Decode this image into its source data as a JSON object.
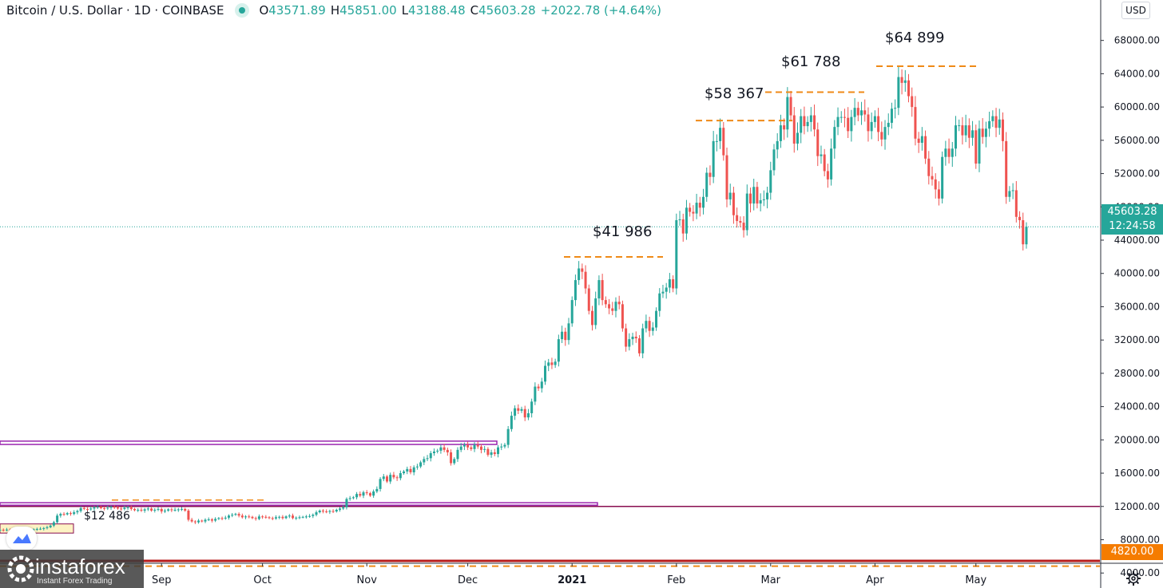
{
  "header": {
    "symbol": "Bitcoin / U.S. Dollar · 1D · COINBASE",
    "o_label": "O",
    "o": "43571.89",
    "h_label": "H",
    "h": "45851.00",
    "l_label": "L",
    "l": "43188.48",
    "c_label": "C",
    "c": "45603.28",
    "change": "+2022.78 (+4.64%)"
  },
  "currency_button": "USD",
  "last_price_label": "45603.28",
  "countdown": "12:24:58",
  "level_label": "4820.00",
  "watermark": {
    "brand": "instaforex",
    "tagline": "Instant Forex Trading"
  },
  "colors": {
    "up": "#26a69a",
    "down": "#ef5350",
    "annot": "#ef8a17",
    "purple": "#9c27b0",
    "support": "#880e4f",
    "red_line": "#b71c1c",
    "last_box": "#26a69a",
    "level_box": "#f57c00"
  },
  "icons": {
    "gear": "settings-gear-icon",
    "tradingview": "tradingview-cloud-icon"
  },
  "chart_data": {
    "type": "candlestick",
    "title": "Bitcoin / U.S. Dollar · 1D · COINBASE",
    "y_axis": {
      "ylim": [
        2200,
        71900
      ],
      "ticks": [
        "68000.00",
        "64000.00",
        "60000.00",
        "56000.00",
        "52000.00",
        "48000.00",
        "44000.00",
        "40000.00",
        "36000.00",
        "32000.00",
        "28000.00",
        "24000.00",
        "20000.00",
        "16000.00",
        "12000.00",
        "8000.00",
        "4000.00"
      ],
      "tick_values": [
        68000,
        64000,
        60000,
        56000,
        52000,
        48000,
        44000,
        40000,
        36000,
        32000,
        28000,
        24000,
        20000,
        16000,
        12000,
        8000,
        4000
      ]
    },
    "x_axis": {
      "labels": [
        {
          "text": "Sep",
          "date": "2020-09-01"
        },
        {
          "text": "Oct",
          "date": "2020-10-01"
        },
        {
          "text": "Nov",
          "date": "2020-11-01"
        },
        {
          "text": "Dec",
          "date": "2020-12-01"
        },
        {
          "text": "2021",
          "date": "2021-01-01",
          "bold": true
        },
        {
          "text": "Feb",
          "date": "2021-02-01"
        },
        {
          "text": "Mar",
          "date": "2021-03-01"
        },
        {
          "text": "Apr",
          "date": "2021-04-01"
        },
        {
          "text": "May",
          "date": "2021-05-01"
        }
      ]
    },
    "series_start_date": "2020-07-15",
    "closes": [
      9200,
      9150,
      9220,
      9170,
      9180,
      9230,
      9200,
      9210,
      9250,
      9200,
      9250,
      9300,
      9320,
      9400,
      9500,
      9700,
      10100,
      10900,
      11100,
      11050,
      11200,
      11100,
      11300,
      11450,
      11800,
      11700,
      11650,
      11750,
      11900,
      11950,
      11800,
      11750,
      11850,
      11950,
      11900,
      11750,
      11700,
      11850,
      11900,
      11700,
      11550,
      11600,
      11500,
      11650,
      11750,
      11500,
      11600,
      11700,
      11400,
      11500,
      11650,
      11550,
      11600,
      11650,
      11700,
      11500,
      10400,
      10200,
      10100,
      10300,
      10200,
      10400,
      10450,
      10300,
      10500,
      10600,
      10550,
      10650,
      10900,
      11000,
      11100,
      10900,
      10700,
      10800,
      10750,
      10600,
      10500,
      10800,
      10750,
      10700,
      10600,
      10550,
      10700,
      10750,
      10600,
      10800,
      10900,
      10600,
      10650,
      10700,
      10750,
      10800,
      10850,
      11000,
      11300,
      11500,
      11400,
      11350,
      11450,
      11400,
      11600,
      11750,
      11900,
      12900,
      13000,
      13100,
      13500,
      13300,
      13700,
      13600,
      13300,
      13800,
      14100,
      15300,
      15600,
      15000,
      15800,
      15500,
      15400,
      16000,
      16200,
      16500,
      16100,
      16700,
      16800,
      17300,
      17700,
      17800,
      18400,
      18600,
      18700,
      19100,
      18800,
      18500,
      17200,
      17700,
      18800,
      19200,
      19400,
      19100,
      18900,
      19400,
      19200,
      18800,
      18900,
      18200,
      18500,
      18300,
      19100,
      19200,
      19400,
      21300,
      22900,
      23800,
      23500,
      23700,
      22700,
      23200,
      24600,
      26400,
      26200,
      27000,
      28900,
      29300,
      29000,
      29400,
      32100,
      33000,
      32000,
      34000,
      36800,
      39200,
      40600,
      40200,
      38200,
      35500,
      33800,
      37000,
      39200,
      36800,
      36300,
      35800,
      35500,
      36600,
      36300,
      33400,
      31200,
      32100,
      32400,
      32200,
      30400,
      33400,
      34300,
      33100,
      33500,
      35500,
      37600,
      37800,
      38300,
      39300,
      38200,
      46400,
      46500,
      44800,
      47900,
      47400,
      47200,
      48500,
      47900,
      49200,
      52100,
      51600,
      55900,
      55900,
      57500,
      54200,
      48900,
      49700,
      47000,
      46300,
      46100,
      45200,
      49600,
      48400,
      50400,
      48400,
      48800,
      48900,
      49700,
      52400,
      54900,
      55900,
      57800,
      57300,
      61200,
      59000,
      55600,
      56900,
      58900,
      57700,
      58200,
      59000,
      57300,
      54100,
      54300,
      52300,
      51300,
      55000,
      57600,
      58800,
      58800,
      58700,
      57100,
      58800,
      59900,
      59000,
      59600,
      59100,
      57100,
      58200,
      58900,
      57000,
      56100,
      57600,
      58100,
      59800,
      59900,
      63600,
      62900,
      63200,
      61300,
      60000,
      56200,
      55700,
      56500,
      53800,
      51700,
      51300,
      50100,
      49000,
      54000,
      55000,
      54000,
      55000,
      57800,
      57800,
      56600,
      57800,
      56300,
      57200,
      53200,
      57400,
      56400,
      57400,
      58300,
      58900,
      57500,
      58500,
      55900,
      49200,
      49900,
      50000,
      46800,
      46400,
      43500,
      45603
    ]
  },
  "annotations": [
    {
      "label": "$12 486",
      "value": 12486
    },
    {
      "label": "$41 986",
      "value": 41986
    },
    {
      "label": "$58 367",
      "value": 58367
    },
    {
      "label": "$61 788",
      "value": 61788
    },
    {
      "label": "$64 899",
      "value": 64899
    }
  ]
}
